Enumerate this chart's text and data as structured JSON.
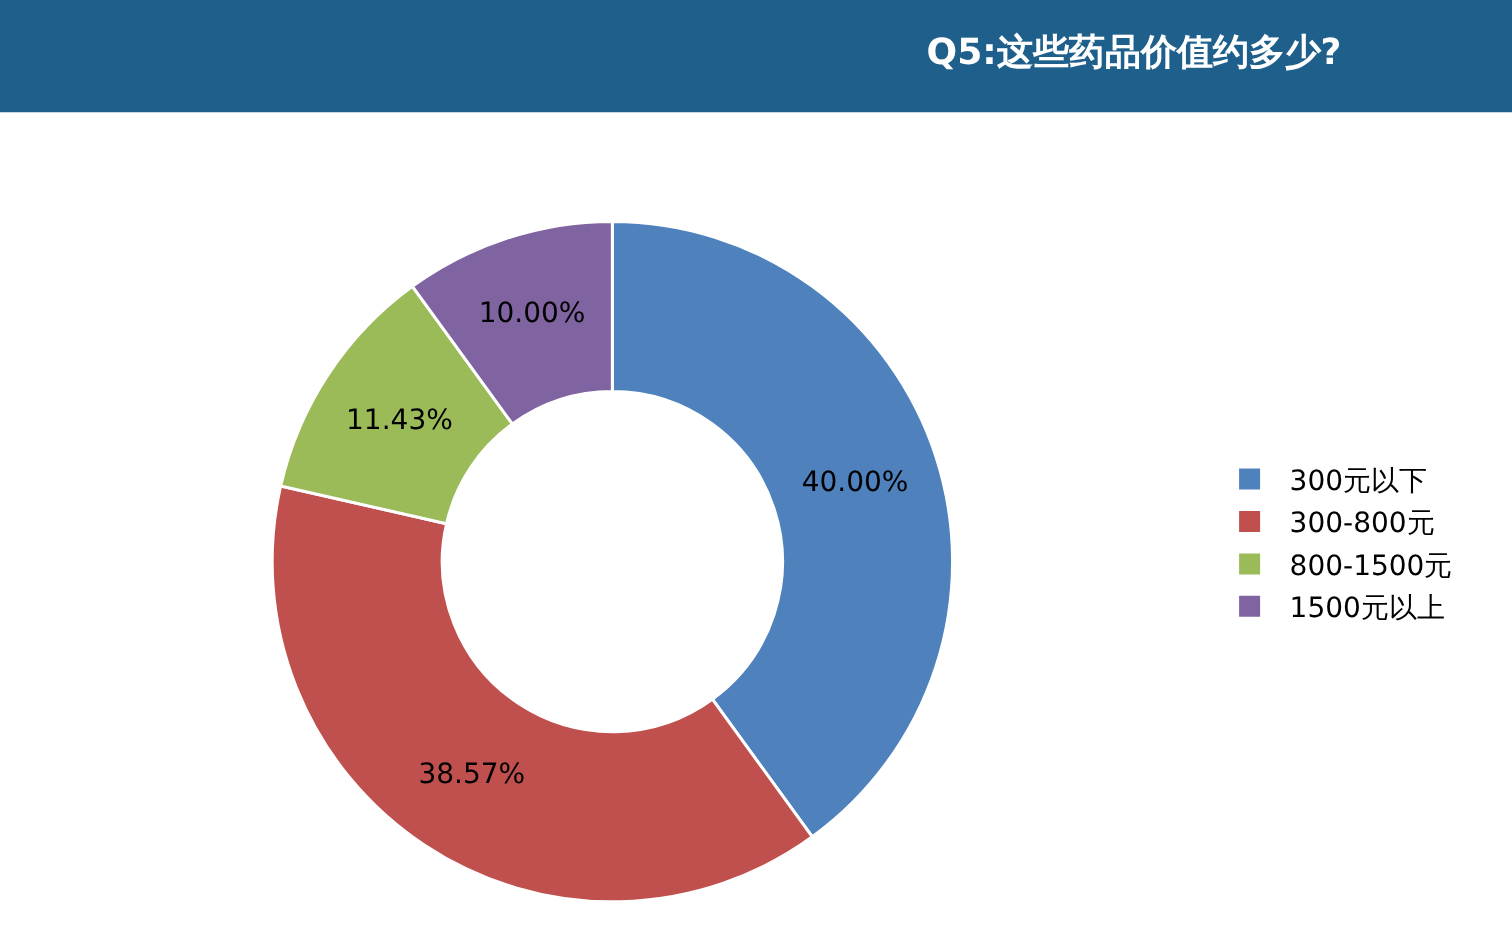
{
  "chart_data": {
    "type": "donut",
    "title": "Q5:这些药品价值约多少?",
    "categories": [
      "300元以下",
      "300-800元",
      "800-1500元",
      "1500元以上"
    ],
    "values": [
      40.0,
      38.57,
      11.43,
      10.0
    ],
    "colors": [
      "#4f81bd",
      "#c0504d",
      "#9bbb59",
      "#8064a2"
    ],
    "value_labels": [
      "40.00%",
      "38.57%",
      "11.43%",
      "10.00%"
    ],
    "legend": "right"
  }
}
